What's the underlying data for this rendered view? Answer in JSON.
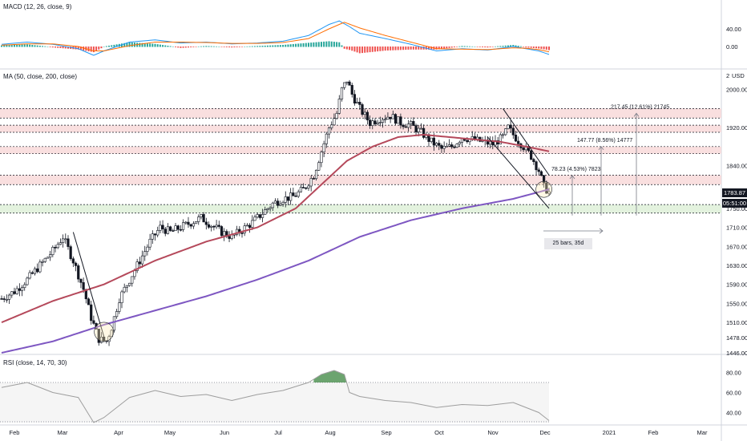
{
  "macd": {
    "title": "MACD (12, 26, close, 9)",
    "ticks": [
      "40.00",
      "0.00"
    ],
    "colors": {
      "macd_line": "#2196f3",
      "signal_line": "#ff6d00",
      "hist_up": "#26a69a",
      "hist_down": "#ef5350"
    }
  },
  "price": {
    "title": "MA (50, close, 200, close)",
    "currency": "USD",
    "scale_top": "2",
    "ticks": [
      "2000.00",
      "1920.00",
      "1840.00",
      "1750.00",
      "1710.00",
      "1670.00",
      "1630.00",
      "1590.00",
      "1550.00",
      "1510.00",
      "1478.00",
      "1446.00"
    ],
    "last_price": "1783.87",
    "countdown": "05:51:00",
    "colors": {
      "up": "#ffffff",
      "down": "#131722",
      "ma50": "#b5495b",
      "ma200": "#7e57c2",
      "zone_red": "#f8d7d7",
      "zone_green": "#dcefd6"
    }
  },
  "rsi": {
    "title": "RSI (close, 14, 70, 30)",
    "ticks": [
      "80.00",
      "60.00",
      "40.00"
    ],
    "colors": {
      "line": "#9e9e9e",
      "overbought_fill": "#2e7d32",
      "band": "#f5f5f5"
    }
  },
  "annotations": {
    "measure1": "78.23 (4.53%) 7823",
    "measure2": "147.77 (8.56%) 14777",
    "measure3": "217.45 (12.61%) 21745",
    "duration": "25 bars, 35d"
  },
  "time_axis": [
    "Feb",
    "Mar",
    "Apr",
    "May",
    "Jun",
    "Jul",
    "Aug",
    "Sep",
    "Oct",
    "Nov",
    "Dec",
    "2021",
    "Feb",
    "Mar"
  ],
  "chart_data": {
    "type": "candlestick",
    "title": "",
    "ylim": [
      1446,
      2040
    ],
    "trend_path": [
      [
        0,
        1560
      ],
      [
        5,
        1575
      ],
      [
        10,
        1600
      ],
      [
        15,
        1630
      ],
      [
        20,
        1660
      ],
      [
        24,
        1690
      ],
      [
        28,
        1640
      ],
      [
        32,
        1580
      ],
      [
        35,
        1520
      ],
      [
        38,
        1475
      ],
      [
        41,
        1470
      ],
      [
        43,
        1500
      ],
      [
        46,
        1560
      ],
      [
        50,
        1600
      ],
      [
        54,
        1640
      ],
      [
        58,
        1680
      ],
      [
        62,
        1710
      ],
      [
        66,
        1700
      ],
      [
        70,
        1710
      ],
      [
        74,
        1720
      ],
      [
        78,
        1730
      ],
      [
        82,
        1715
      ],
      [
        86,
        1700
      ],
      [
        90,
        1690
      ],
      [
        94,
        1705
      ],
      [
        98,
        1720
      ],
      [
        102,
        1740
      ],
      [
        106,
        1760
      ],
      [
        110,
        1770
      ],
      [
        114,
        1775
      ],
      [
        118,
        1790
      ],
      [
        122,
        1820
      ],
      [
        125,
        1870
      ],
      [
        128,
        1920
      ],
      [
        131,
        1950
      ],
      [
        133,
        2000
      ],
      [
        135,
        2020
      ],
      [
        137,
        1990
      ],
      [
        140,
        1960
      ],
      [
        144,
        1930
      ],
      [
        148,
        1940
      ],
      [
        152,
        1945
      ],
      [
        156,
        1930
      ],
      [
        160,
        1925
      ],
      [
        164,
        1910
      ],
      [
        168,
        1890
      ],
      [
        172,
        1875
      ],
      [
        176,
        1880
      ],
      [
        180,
        1900
      ],
      [
        184,
        1895
      ],
      [
        188,
        1890
      ],
      [
        192,
        1885
      ],
      [
        196,
        1900
      ],
      [
        198,
        1920
      ],
      [
        200,
        1905
      ],
      [
        204,
        1880
      ],
      [
        207,
        1860
      ],
      [
        210,
        1830
      ],
      [
        212,
        1795
      ],
      [
        214,
        1784
      ]
    ],
    "ma50": [
      [
        0,
        1510
      ],
      [
        20,
        1555
      ],
      [
        40,
        1590
      ],
      [
        60,
        1640
      ],
      [
        80,
        1680
      ],
      [
        100,
        1710
      ],
      [
        115,
        1750
      ],
      [
        125,
        1800
      ],
      [
        135,
        1850
      ],
      [
        145,
        1880
      ],
      [
        155,
        1900
      ],
      [
        165,
        1905
      ],
      [
        175,
        1900
      ],
      [
        185,
        1895
      ],
      [
        195,
        1890
      ],
      [
        205,
        1880
      ],
      [
        214,
        1870
      ]
    ],
    "ma200": [
      [
        0,
        1446
      ],
      [
        20,
        1470
      ],
      [
        40,
        1505
      ],
      [
        60,
        1535
      ],
      [
        80,
        1565
      ],
      [
        100,
        1600
      ],
      [
        120,
        1640
      ],
      [
        140,
        1690
      ],
      [
        160,
        1725
      ],
      [
        180,
        1750
      ],
      [
        200,
        1770
      ],
      [
        214,
        1790
      ]
    ],
    "rsi_path": [
      [
        0,
        65
      ],
      [
        10,
        70
      ],
      [
        20,
        60
      ],
      [
        30,
        55
      ],
      [
        36,
        30
      ],
      [
        40,
        35
      ],
      [
        50,
        55
      ],
      [
        60,
        62
      ],
      [
        70,
        56
      ],
      [
        80,
        58
      ],
      [
        90,
        52
      ],
      [
        100,
        58
      ],
      [
        110,
        62
      ],
      [
        120,
        70
      ],
      [
        125,
        78
      ],
      [
        130,
        82
      ],
      [
        134,
        78
      ],
      [
        136,
        60
      ],
      [
        140,
        56
      ],
      [
        150,
        52
      ],
      [
        160,
        50
      ],
      [
        170,
        45
      ],
      [
        180,
        48
      ],
      [
        190,
        47
      ],
      [
        200,
        50
      ],
      [
        205,
        45
      ],
      [
        210,
        40
      ],
      [
        214,
        32
      ]
    ],
    "macd_path": [
      [
        0,
        5
      ],
      [
        10,
        10
      ],
      [
        20,
        5
      ],
      [
        30,
        -5
      ],
      [
        36,
        -20
      ],
      [
        40,
        -10
      ],
      [
        50,
        10
      ],
      [
        60,
        15
      ],
      [
        70,
        8
      ],
      [
        80,
        10
      ],
      [
        90,
        6
      ],
      [
        100,
        8
      ],
      [
        110,
        12
      ],
      [
        120,
        25
      ],
      [
        128,
        50
      ],
      [
        132,
        58
      ],
      [
        136,
        45
      ],
      [
        140,
        30
      ],
      [
        150,
        18
      ],
      [
        160,
        5
      ],
      [
        170,
        -10
      ],
      [
        180,
        -5
      ],
      [
        190,
        -8
      ],
      [
        200,
        0
      ],
      [
        205,
        -5
      ],
      [
        210,
        -10
      ],
      [
        214,
        -18
      ]
    ],
    "signal_path": [
      [
        0,
        3
      ],
      [
        10,
        6
      ],
      [
        20,
        6
      ],
      [
        30,
        0
      ],
      [
        36,
        -10
      ],
      [
        40,
        -10
      ],
      [
        50,
        2
      ],
      [
        60,
        10
      ],
      [
        70,
        10
      ],
      [
        80,
        9
      ],
      [
        90,
        7
      ],
      [
        100,
        7
      ],
      [
        110,
        9
      ],
      [
        120,
        18
      ],
      [
        128,
        40
      ],
      [
        134,
        55
      ],
      [
        140,
        42
      ],
      [
        150,
        25
      ],
      [
        160,
        10
      ],
      [
        170,
        -5
      ],
      [
        180,
        -6
      ],
      [
        190,
        -7
      ],
      [
        200,
        -3
      ],
      [
        205,
        -4
      ],
      [
        210,
        -7
      ],
      [
        214,
        -12
      ]
    ],
    "zones": [
      [
        1940,
        1960,
        "red"
      ],
      [
        1910,
        1925,
        "red"
      ],
      [
        1865,
        1880,
        "red"
      ],
      [
        1800,
        1820,
        "red"
      ],
      [
        1740,
        1758,
        "green"
      ]
    ]
  }
}
